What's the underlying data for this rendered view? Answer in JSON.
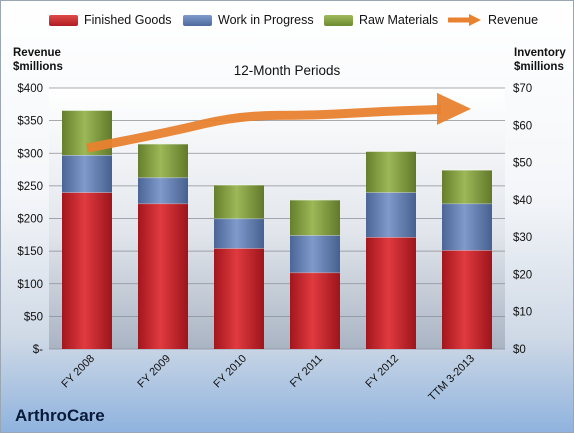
{
  "legend": {
    "finished": "Finished Goods",
    "wip": "Work in Progress",
    "raw": "Raw Materials",
    "revenue": "Revenue"
  },
  "left_axis_title": [
    "Revenue",
    "$millions"
  ],
  "right_axis_title": [
    "Inventory",
    "$millions"
  ],
  "footer": "ArthroCare",
  "colors": {
    "finished": "#c81e28",
    "wip": "#5b79ae",
    "raw": "#7f9c3c",
    "revenue": "#e8822f"
  },
  "chart_data": {
    "type": "bar",
    "stacked": true,
    "title": "12-Month Periods",
    "categories": [
      "FY 2008",
      "FY 2009",
      "FY 2010",
      "FY 2011",
      "FY 2012",
      "TTM 3-2013"
    ],
    "series": [
      {
        "name": "Finished Goods",
        "axis": "right",
        "values": [
          42,
          39,
          27,
          20.5,
          30,
          26.5
        ]
      },
      {
        "name": "Work in Progress",
        "axis": "right",
        "values": [
          10,
          7,
          8,
          10,
          12,
          12.5
        ]
      },
      {
        "name": "Raw Materials",
        "axis": "right",
        "values": [
          12,
          9,
          9,
          9.5,
          11,
          9
        ]
      },
      {
        "name": "Revenue",
        "type": "line",
        "axis": "left",
        "values": [
          308,
          330,
          358,
          358,
          365,
          368
        ]
      }
    ],
    "left_axis": {
      "range": [
        0,
        400
      ],
      "ticks": [
        "$-",
        "$50",
        "$100",
        "$150",
        "$200",
        "$250",
        "$300",
        "$350",
        "$400"
      ]
    },
    "right_axis": {
      "range": [
        0,
        70
      ],
      "ticks": [
        "$0",
        "$10",
        "$20",
        "$30",
        "$40",
        "$50",
        "$60",
        "$70"
      ]
    },
    "grid": true,
    "legend_position": "top"
  }
}
